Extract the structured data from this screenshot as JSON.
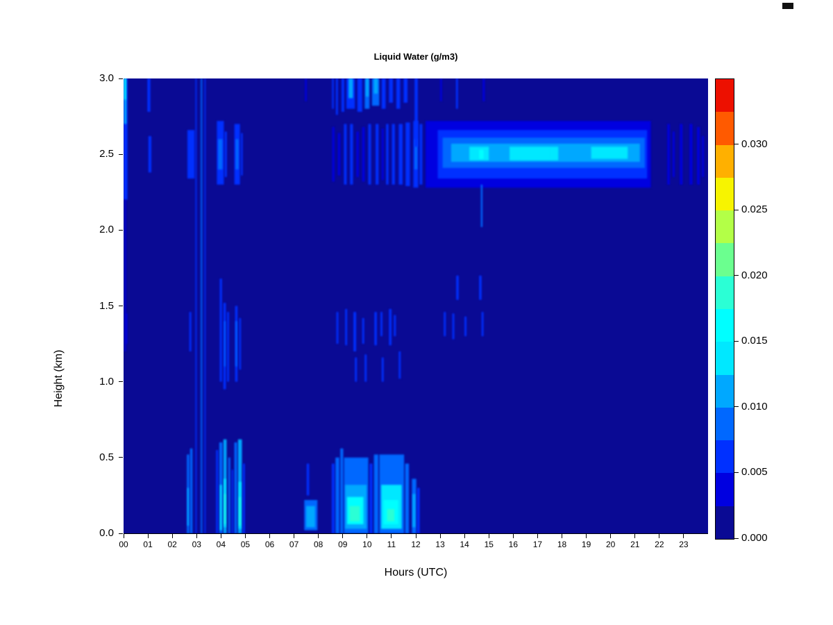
{
  "window": {
    "corner_mark": "black-rectangle"
  },
  "chart_data": {
    "type": "heatmap",
    "title": "Liquid Water (g/m3)",
    "xlabel": "Hours (UTC)",
    "ylabel": "Height (km)",
    "x_range": [
      0,
      24
    ],
    "y_range": [
      0,
      3
    ],
    "x_tick_labels": [
      "00",
      "01",
      "02",
      "03",
      "04",
      "05",
      "06",
      "07",
      "08",
      "09",
      "10",
      "11",
      "12",
      "13",
      "14",
      "15",
      "16",
      "17",
      "18",
      "19",
      "20",
      "21",
      "22",
      "23"
    ],
    "x_tick_values": [
      0,
      1,
      2,
      3,
      4,
      5,
      6,
      7,
      8,
      9,
      10,
      11,
      12,
      13,
      14,
      15,
      16,
      17,
      18,
      19,
      20,
      21,
      22,
      23
    ],
    "y_tick_labels": [
      "0.0",
      "0.5",
      "1.0",
      "1.5",
      "2.0",
      "2.5",
      "3.0"
    ],
    "y_tick_values": [
      0,
      0.5,
      1,
      1.5,
      2,
      2.5,
      3
    ],
    "grid": false,
    "background_value": 0.0,
    "colorbar": {
      "position": "right",
      "vmin": 0,
      "vmax": 0.035,
      "colors": [
        "#0A0A94",
        "#0000E0",
        "#0030FF",
        "#0068FF",
        "#00A8FF",
        "#00E8FF",
        "#00FFFF",
        "#2BFFD5",
        "#6BFF8F",
        "#B3FF47",
        "#F7F400",
        "#FFB000",
        "#FF5A00",
        "#ED1000"
      ],
      "tick_labels": [
        "0.000",
        "0.005",
        "0.010",
        "0.015",
        "0.020",
        "0.025",
        "0.030"
      ],
      "tick_values": [
        0,
        0.005,
        0.01,
        0.015,
        0.02,
        0.025,
        0.03
      ]
    },
    "feature_format": [
      "x0_hours",
      "x1_hours",
      "y0_km",
      "y1_km",
      "value_g_per_m3"
    ],
    "features": [
      [
        12.4,
        21.65,
        2.28,
        2.72,
        0.004
      ],
      [
        12.9,
        21.5,
        2.34,
        2.66,
        0.006
      ],
      [
        13.1,
        21.4,
        2.41,
        2.61,
        0.0085
      ],
      [
        13.45,
        21.2,
        2.45,
        2.57,
        0.011
      ],
      [
        14.2,
        15.0,
        2.46,
        2.55,
        0.013
      ],
      [
        15.85,
        17.85,
        2.46,
        2.55,
        0.013
      ],
      [
        16.3,
        17.5,
        2.47,
        2.54,
        0.0135
      ],
      [
        19.2,
        20.7,
        2.47,
        2.55,
        0.0125
      ],
      [
        14.6,
        14.78,
        2.47,
        2.53,
        0.016
      ],
      [
        14.67,
        14.74,
        2.02,
        2.3,
        0.009
      ],
      [
        8.57,
        8.66,
        2.32,
        2.68,
        0.004
      ],
      [
        8.8,
        8.9,
        2.36,
        2.64,
        0.0045
      ],
      [
        9.05,
        9.16,
        2.3,
        2.7,
        0.005
      ],
      [
        9.3,
        9.42,
        2.3,
        2.7,
        0.005
      ],
      [
        9.56,
        9.66,
        2.35,
        2.65,
        0.0045
      ],
      [
        9.8,
        9.9,
        2.32,
        2.68,
        0.0045
      ],
      [
        10.05,
        10.16,
        2.3,
        2.7,
        0.005
      ],
      [
        10.35,
        10.47,
        2.3,
        2.7,
        0.005
      ],
      [
        10.6,
        10.68,
        2.33,
        2.67,
        0.0045
      ],
      [
        10.78,
        10.88,
        2.3,
        2.7,
        0.005
      ],
      [
        11.02,
        11.14,
        2.3,
        2.7,
        0.0055
      ],
      [
        11.3,
        11.46,
        2.3,
        2.7,
        0.005
      ],
      [
        11.58,
        11.76,
        2.29,
        2.71,
        0.006
      ],
      [
        11.9,
        12.1,
        2.28,
        2.72,
        0.007
      ],
      [
        11.95,
        12.06,
        2.4,
        2.6,
        0.009
      ],
      [
        12.15,
        12.27,
        2.3,
        2.7,
        0.005
      ],
      [
        22.33,
        22.43,
        2.3,
        2.7,
        0.0035
      ],
      [
        22.55,
        22.63,
        2.35,
        2.65,
        0.003
      ],
      [
        22.84,
        22.95,
        2.3,
        2.7,
        0.004
      ],
      [
        23.24,
        23.36,
        2.3,
        2.7,
        0.004
      ],
      [
        23.55,
        23.66,
        2.3,
        2.68,
        0.0035
      ],
      [
        23.75,
        23.83,
        2.35,
        2.62,
        0.003
      ],
      [
        0.0,
        0.16,
        2.2,
        3.0,
        0.006
      ],
      [
        0.02,
        0.12,
        2.7,
        3.0,
        0.01
      ],
      [
        0.02,
        0.1,
        2.86,
        3.0,
        0.013
      ],
      [
        0.04,
        0.1,
        1.2,
        2.2,
        0.004
      ],
      [
        0.08,
        0.15,
        1.25,
        1.45,
        0.004
      ],
      [
        0.98,
        1.1,
        2.78,
        3.0,
        0.005
      ],
      [
        1.02,
        1.14,
        2.38,
        2.62,
        0.005
      ],
      [
        2.62,
        2.92,
        2.34,
        2.66,
        0.005
      ],
      [
        2.7,
        2.78,
        1.2,
        1.46,
        0.005
      ],
      [
        2.6,
        2.7,
        0.0,
        0.52,
        0.008
      ],
      [
        2.62,
        2.68,
        0.05,
        0.3,
        0.011
      ],
      [
        2.73,
        2.83,
        0.0,
        0.56,
        0.009
      ],
      [
        2.95,
        3.0,
        0.0,
        3.0,
        0.007
      ],
      [
        3.17,
        3.23,
        0.0,
        3.0,
        0.009
      ],
      [
        3.32,
        3.37,
        0.0,
        3.0,
        0.007
      ],
      [
        3.83,
        4.12,
        2.3,
        2.72,
        0.006
      ],
      [
        3.88,
        4.06,
        2.4,
        2.6,
        0.008
      ],
      [
        4.15,
        4.24,
        2.35,
        2.65,
        0.005
      ],
      [
        4.55,
        4.78,
        2.3,
        2.7,
        0.007
      ],
      [
        4.6,
        4.72,
        2.4,
        2.6,
        0.009
      ],
      [
        4.82,
        4.89,
        2.36,
        2.64,
        0.005
      ],
      [
        3.95,
        4.04,
        1.0,
        1.68,
        0.006
      ],
      [
        4.1,
        4.2,
        0.95,
        1.52,
        0.0075
      ],
      [
        4.13,
        4.18,
        1.1,
        1.4,
        0.009
      ],
      [
        4.25,
        4.33,
        1.0,
        1.46,
        0.0055
      ],
      [
        4.58,
        4.68,
        1.0,
        1.5,
        0.0075
      ],
      [
        4.6,
        4.66,
        1.1,
        1.4,
        0.009
      ],
      [
        4.75,
        4.82,
        1.08,
        1.42,
        0.0055
      ],
      [
        3.8,
        3.88,
        0.0,
        0.55,
        0.006
      ],
      [
        3.93,
        4.06,
        0.0,
        0.6,
        0.009
      ],
      [
        3.96,
        4.03,
        0.02,
        0.32,
        0.013
      ],
      [
        4.1,
        4.23,
        0.0,
        0.62,
        0.01
      ],
      [
        4.12,
        4.2,
        0.04,
        0.36,
        0.015
      ],
      [
        4.14,
        4.18,
        0.06,
        0.26,
        0.018
      ],
      [
        4.3,
        4.38,
        0.0,
        0.5,
        0.008
      ],
      [
        4.44,
        4.5,
        0.0,
        0.42,
        0.006
      ],
      [
        4.55,
        4.66,
        0.0,
        0.6,
        0.009
      ],
      [
        4.7,
        4.86,
        0.0,
        0.62,
        0.011
      ],
      [
        4.73,
        4.83,
        0.03,
        0.34,
        0.015
      ],
      [
        4.75,
        4.8,
        0.05,
        0.24,
        0.018
      ],
      [
        4.9,
        4.98,
        0.0,
        0.46,
        0.007
      ],
      [
        7.45,
        7.52,
        2.85,
        3.0,
        0.004
      ],
      [
        7.52,
        7.62,
        0.25,
        0.46,
        0.006
      ],
      [
        7.42,
        7.96,
        0.02,
        0.22,
        0.008
      ],
      [
        7.5,
        7.86,
        0.04,
        0.18,
        0.011
      ],
      [
        8.55,
        8.66,
        0.0,
        0.46,
        0.007
      ],
      [
        8.7,
        8.86,
        0.0,
        0.5,
        0.008
      ],
      [
        8.9,
        9.02,
        0.0,
        0.56,
        0.008
      ],
      [
        9.05,
        10.05,
        0.0,
        0.5,
        0.008
      ],
      [
        9.1,
        9.98,
        0.03,
        0.32,
        0.012
      ],
      [
        9.18,
        9.85,
        0.06,
        0.24,
        0.016
      ],
      [
        9.28,
        9.7,
        0.08,
        0.18,
        0.019
      ],
      [
        10.1,
        10.22,
        0.0,
        0.46,
        0.007
      ],
      [
        10.28,
        10.46,
        0.0,
        0.52,
        0.008
      ],
      [
        10.5,
        11.52,
        0.0,
        0.52,
        0.009
      ],
      [
        10.58,
        11.42,
        0.03,
        0.32,
        0.013
      ],
      [
        10.68,
        11.28,
        0.06,
        0.22,
        0.017
      ],
      [
        10.82,
        11.12,
        0.08,
        0.16,
        0.019
      ],
      [
        11.56,
        11.72,
        0.0,
        0.46,
        0.008
      ],
      [
        11.84,
        12.02,
        0.0,
        0.36,
        0.009
      ],
      [
        11.87,
        11.98,
        0.04,
        0.26,
        0.012
      ],
      [
        12.05,
        12.16,
        0.0,
        0.3,
        0.007
      ],
      [
        8.74,
        8.82,
        1.25,
        1.46,
        0.005
      ],
      [
        9.1,
        9.18,
        1.24,
        1.48,
        0.006
      ],
      [
        9.44,
        9.55,
        1.2,
        1.46,
        0.006
      ],
      [
        9.5,
        9.58,
        1.0,
        1.16,
        0.005
      ],
      [
        9.8,
        9.88,
        1.25,
        1.42,
        0.005
      ],
      [
        9.9,
        9.98,
        1.0,
        1.18,
        0.005
      ],
      [
        10.3,
        10.4,
        1.24,
        1.46,
        0.006
      ],
      [
        10.55,
        10.63,
        1.3,
        1.46,
        0.005
      ],
      [
        10.6,
        10.68,
        1.0,
        1.16,
        0.005
      ],
      [
        10.9,
        11.0,
        1.24,
        1.48,
        0.006
      ],
      [
        11.1,
        11.18,
        1.3,
        1.44,
        0.005
      ],
      [
        11.3,
        11.38,
        1.02,
        1.2,
        0.005
      ],
      [
        8.56,
        8.63,
        2.8,
        3.0,
        0.005
      ],
      [
        8.72,
        8.8,
        2.76,
        3.0,
        0.005
      ],
      [
        8.95,
        9.06,
        2.78,
        3.0,
        0.006
      ],
      [
        9.15,
        9.5,
        2.8,
        3.0,
        0.007
      ],
      [
        9.24,
        9.42,
        2.87,
        3.0,
        0.01
      ],
      [
        9.6,
        9.8,
        2.78,
        3.0,
        0.007
      ],
      [
        9.9,
        10.1,
        2.8,
        3.0,
        0.008
      ],
      [
        9.95,
        10.06,
        2.88,
        3.0,
        0.011
      ],
      [
        10.2,
        10.5,
        2.82,
        3.0,
        0.009
      ],
      [
        10.28,
        10.44,
        2.9,
        3.0,
        0.011
      ],
      [
        10.6,
        10.76,
        2.8,
        3.0,
        0.007
      ],
      [
        10.9,
        11.06,
        2.84,
        3.0,
        0.006
      ],
      [
        11.2,
        11.36,
        2.8,
        3.0,
        0.006
      ],
      [
        11.5,
        11.66,
        2.84,
        3.0,
        0.005
      ],
      [
        11.95,
        12.08,
        2.55,
        3.0,
        0.007
      ],
      [
        13.0,
        13.07,
        2.85,
        3.0,
        0.004
      ],
      [
        13.65,
        13.73,
        2.8,
        3.0,
        0.005
      ],
      [
        14.75,
        14.83,
        2.85,
        3.0,
        0.004
      ],
      [
        13.15,
        13.23,
        1.3,
        1.46,
        0.005
      ],
      [
        13.5,
        13.58,
        1.28,
        1.45,
        0.005
      ],
      [
        13.66,
        13.76,
        1.54,
        1.7,
        0.006
      ],
      [
        14.0,
        14.08,
        1.3,
        1.43,
        0.005
      ],
      [
        14.6,
        14.7,
        1.54,
        1.7,
        0.007
      ],
      [
        14.7,
        14.78,
        1.3,
        1.46,
        0.005
      ]
    ]
  }
}
